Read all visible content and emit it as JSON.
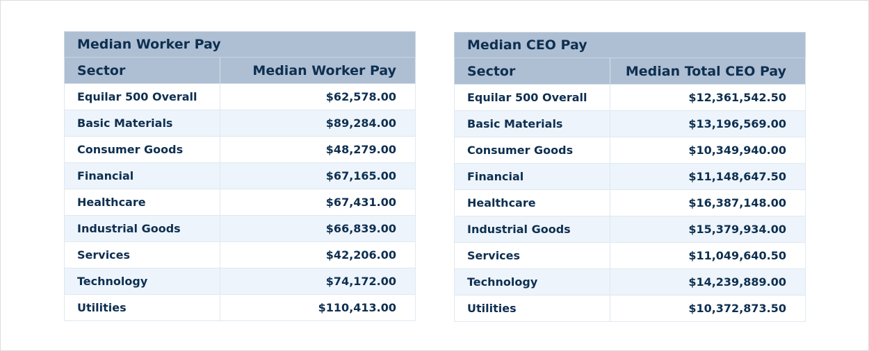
{
  "chart_data": [
    {
      "type": "table",
      "title": "Median Worker Pay",
      "columns": [
        "Sector",
        "Median Worker Pay"
      ],
      "rows": [
        [
          "Equilar 500 Overall",
          "$62,578.00"
        ],
        [
          "Basic Materials",
          "$89,284.00"
        ],
        [
          "Consumer Goods",
          "$48,279.00"
        ],
        [
          "Financial",
          "$67,165.00"
        ],
        [
          "Healthcare",
          "$67,431.00"
        ],
        [
          "Industrial Goods",
          "$66,839.00"
        ],
        [
          "Services",
          "$42,206.00"
        ],
        [
          "Technology",
          "$74,172.00"
        ],
        [
          "Utilities",
          "$110,413.00"
        ]
      ]
    },
    {
      "type": "table",
      "title": "Median CEO Pay",
      "columns": [
        "Sector",
        "Median Total CEO Pay"
      ],
      "rows": [
        [
          "Equilar 500 Overall",
          "$12,361,542.50"
        ],
        [
          "Basic Materials",
          "$13,196,569.00"
        ],
        [
          "Consumer Goods",
          "$10,349,940.00"
        ],
        [
          "Financial",
          "$11,148,647.50"
        ],
        [
          "Healthcare",
          "$16,387,148.00"
        ],
        [
          "Industrial Goods",
          "$15,379,934.00"
        ],
        [
          "Services",
          "$11,049,640.50"
        ],
        [
          "Technology",
          "$14,239,889.00"
        ],
        [
          "Utilities",
          "$10,372,873.50"
        ]
      ]
    }
  ],
  "colors": {
    "header_bg": "#aebfd3",
    "text": "#0e2f50",
    "row_alt_bg": "#edf4fb",
    "row_bg": "#ffffff"
  }
}
